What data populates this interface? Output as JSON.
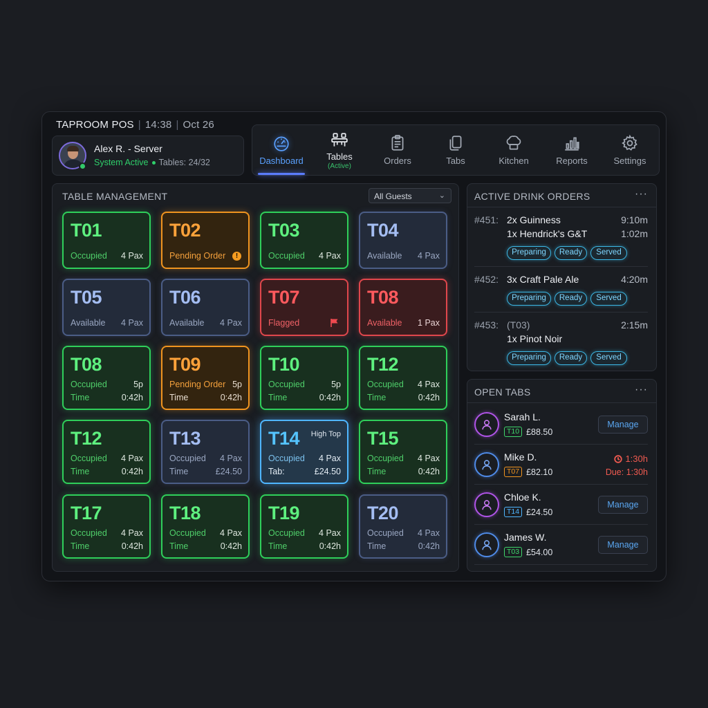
{
  "app": {
    "title": "TAPROOM POS",
    "time": "14:38",
    "date": "Oct 26"
  },
  "user": {
    "name": "Alex R. - Server",
    "status": "System Active",
    "tables": "Tables: 24/32"
  },
  "nav": [
    {
      "label": "Dashboard",
      "icon": "gauge-icon"
    },
    {
      "label": "Tables",
      "sub": "(Active)",
      "icon": "table-icon"
    },
    {
      "label": "Orders",
      "icon": "clipboard-icon"
    },
    {
      "label": "Tabs",
      "icon": "tabs-icon"
    },
    {
      "label": "Kitchen",
      "icon": "chef-hat-icon"
    },
    {
      "label": "Reports",
      "icon": "bar-chart-icon"
    },
    {
      "label": "Settings",
      "icon": "gear-icon"
    }
  ],
  "table_management": {
    "title": "TABLE MANAGEMENT",
    "filter": "All Guests",
    "tiles": [
      {
        "id": "T01",
        "status": "Occupied",
        "pax": "4 Pax",
        "color": "green"
      },
      {
        "id": "T02",
        "status": "Pending Order",
        "color": "orange",
        "badge": "!"
      },
      {
        "id": "T03",
        "status": "Occupied",
        "pax": "4 Pax",
        "color": "green"
      },
      {
        "id": "T04",
        "status": "Available",
        "pax": "4 Pax",
        "color": "blue"
      },
      {
        "id": "T05",
        "status": "Available",
        "pax": "4 Pax",
        "color": "blue"
      },
      {
        "id": "T06",
        "status": "Available",
        "pax": "4 Pax",
        "color": "blue"
      },
      {
        "id": "T07",
        "status": "Flagged",
        "color": "red",
        "icon": "flag-icon"
      },
      {
        "id": "T08",
        "status": "Available",
        "pax": "1 Pax",
        "color": "red"
      },
      {
        "id": "T08",
        "status": "Occupied",
        "pax": "5p",
        "l2": "Time",
        "r2": "0:42h",
        "color": "green"
      },
      {
        "id": "T09",
        "status": "Pending Order",
        "pax": "5p",
        "l2": "Time",
        "r2": "0:42h",
        "color": "orange"
      },
      {
        "id": "T10",
        "status": "Occupied",
        "pax": "5p",
        "l2": "Time",
        "r2": "0:42h",
        "color": "green"
      },
      {
        "id": "T12",
        "status": "Occupied",
        "pax": "4 Pax",
        "l2": "Time",
        "r2": "0:42h",
        "color": "green"
      },
      {
        "id": "T12",
        "status": "Occupied",
        "pax": "4 Pax",
        "l2": "Time",
        "r2": "0:42h",
        "color": "green"
      },
      {
        "id": "T13",
        "status": "Occupied",
        "pax": "4 Pax",
        "l2": "Time",
        "r2": "£24.50",
        "color": "blue"
      },
      {
        "id": "T14",
        "note": "High Top",
        "status": "Occupied",
        "pax": "4 Pax",
        "l2": "Tab:",
        "r2": "£24.50",
        "color": "cyan"
      },
      {
        "id": "T15",
        "status": "Occupied",
        "pax": "4 Pax",
        "l2": "Time",
        "r2": "0:42h",
        "color": "green"
      },
      {
        "id": "T17",
        "status": "Occupied",
        "pax": "4 Pax",
        "l2": "Time",
        "r2": "0:42h",
        "color": "green"
      },
      {
        "id": "T18",
        "status": "Occupied",
        "pax": "4 Pax",
        "l2": "Time",
        "r2": "0:42h",
        "color": "green"
      },
      {
        "id": "T19",
        "status": "Occupied",
        "pax": "4 Pax",
        "l2": "Time",
        "r2": "0:42h",
        "color": "green"
      },
      {
        "id": "T20",
        "status": "Occupied",
        "pax": "4 Pax",
        "l2": "Time",
        "r2": "0:42h",
        "color": "blue"
      }
    ]
  },
  "drink_orders": {
    "title": "ACTIVE DRINK ORDERS",
    "more": "···",
    "chips": [
      "Preparing",
      "Ready",
      "Served"
    ],
    "orders": [
      {
        "num": "#451:",
        "lines": [
          {
            "text": "2x Guinness",
            "time": "9:10m"
          },
          {
            "text": "1x Hendrick's G&T",
            "time": "1:02m"
          }
        ]
      },
      {
        "num": "#452:",
        "lines": [
          {
            "text": "3x Craft Pale Ale",
            "time": "4:20m"
          }
        ]
      },
      {
        "num": "#453:",
        "lines": [
          {
            "text": "(T03)",
            "time": "2:15m"
          },
          {
            "text": "1x Pinot Noir",
            "time": ""
          }
        ]
      }
    ]
  },
  "open_tabs": {
    "title": "OPEN TABS",
    "more": "···",
    "manage_label": "Manage",
    "tabs": [
      {
        "name": "Sarah L.",
        "table": "T10",
        "amount": "£88.50"
      },
      {
        "name": "Mike D.",
        "table": "T07",
        "amount": "£82.10",
        "overdue": "1:30h",
        "due": "Due: 1:30h"
      },
      {
        "name": "Chloe K.",
        "table": "T14",
        "amount": "£24.50"
      },
      {
        "name": "James W.",
        "table": "T03",
        "amount": "£54.00"
      }
    ]
  }
}
